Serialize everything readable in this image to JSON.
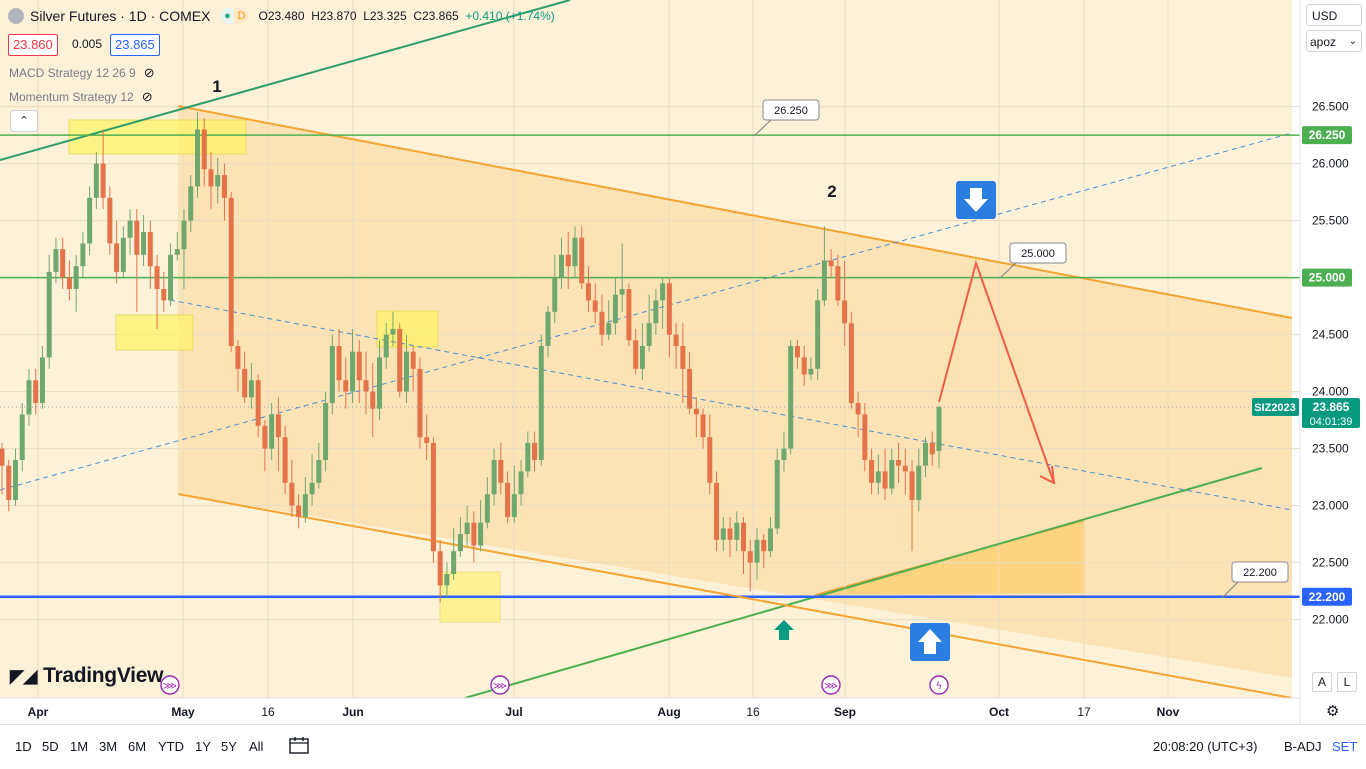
{
  "header": {
    "title": "Silver Futures · 1D · COMEX",
    "badges": [
      "●",
      "D"
    ],
    "ohlc": {
      "o": "O23.480",
      "h": "H23.870",
      "l": "L23.325",
      "c": "C23.865",
      "change": "+0.410 (+1.74%)"
    }
  },
  "prices": {
    "bid": "23.860",
    "spread": "0.005",
    "ask": "23.865"
  },
  "indicators": [
    {
      "label": "MACD Strategy 12 26 9",
      "icon": "eye-crossed-icon"
    },
    {
      "label": "Momentum Strategy 12",
      "icon": "eye-crossed-icon"
    }
  ],
  "controls": {
    "currency": "USD",
    "scale_mode": "apoz",
    "collapse_glyph": "⌃",
    "auto_btn": "A",
    "log_btn": "L"
  },
  "logo": "TradingView",
  "toolbar": {
    "timeframes": [
      "1D",
      "5D",
      "1M",
      "3M",
      "6M",
      "YTD",
      "1Y",
      "5Y",
      "All"
    ],
    "clock": "20:08:20 (UTC+3)",
    "adjust": "B-ADJ",
    "settings": "SET"
  },
  "chart_data": {
    "type": "candlestick",
    "symbol": "SIZ2023",
    "last_price": "23.865",
    "countdown": "04:01:39",
    "y_axis": {
      "min": 21.65,
      "max": 26.95,
      "ticks": [
        "22.000",
        "22.500",
        "23.000",
        "23.500",
        "24.000",
        "24.500",
        "25.000",
        "25.500",
        "26.000",
        "26.500"
      ]
    },
    "x_axis": {
      "labels": [
        "Apr",
        "May",
        "16",
        "Jun",
        "Jul",
        "Aug",
        "16",
        "Sep",
        "Oct",
        "17",
        "Nov"
      ],
      "bold": [
        "Apr",
        "May",
        "Jun",
        "Jul",
        "Aug",
        "Sep",
        "Oct",
        "Nov"
      ]
    },
    "horizontal_levels": [
      {
        "price": 26.25,
        "label": "26.250",
        "color": "#4caf50"
      },
      {
        "price": 25.0,
        "label": "25.000",
        "color": "#4caf50"
      },
      {
        "price": 22.2,
        "label": "22.200",
        "color": "#2962ff"
      }
    ],
    "callouts": [
      "26.250",
      "25.000",
      "22.200"
    ],
    "wave_labels": [
      "1",
      "2"
    ],
    "axis_colors": {
      "up": "#089981",
      "down": "#f23645",
      "level_label_green": "#4caf50",
      "level_label_blue": "#2962ff"
    },
    "candles": [
      [
        23.5,
        23.35,
        23.55,
        23.1
      ],
      [
        23.35,
        23.05,
        23.4,
        22.95
      ],
      [
        23.05,
        23.4,
        23.5,
        23.0
      ],
      [
        23.4,
        23.8,
        23.9,
        23.3
      ],
      [
        23.8,
        24.1,
        24.2,
        23.7
      ],
      [
        24.1,
        23.9,
        24.2,
        23.8
      ],
      [
        23.9,
        24.3,
        24.4,
        23.85
      ],
      [
        24.3,
        25.05,
        25.2,
        24.2
      ],
      [
        25.05,
        25.25,
        25.35,
        24.95
      ],
      [
        25.25,
        25.0,
        25.35,
        24.9
      ],
      [
        25.0,
        24.9,
        25.15,
        24.8
      ],
      [
        24.9,
        25.1,
        25.2,
        24.7
      ],
      [
        25.1,
        25.3,
        25.4,
        25.0
      ],
      [
        25.3,
        25.7,
        25.8,
        25.2
      ],
      [
        25.7,
        26.0,
        26.1,
        25.6
      ],
      [
        26.0,
        25.7,
        26.3,
        25.6
      ],
      [
        25.7,
        25.3,
        25.8,
        25.2
      ],
      [
        25.3,
        25.05,
        25.5,
        24.95
      ],
      [
        25.05,
        25.35,
        25.45,
        25.0
      ],
      [
        25.35,
        25.5,
        25.6,
        25.2
      ],
      [
        25.5,
        25.2,
        25.6,
        24.7
      ],
      [
        25.2,
        25.4,
        25.55,
        25.1
      ],
      [
        25.4,
        25.1,
        25.5,
        24.9
      ],
      [
        25.1,
        24.9,
        25.2,
        24.55
      ],
      [
        24.9,
        24.8,
        25.05,
        24.7
      ],
      [
        24.8,
        25.2,
        25.3,
        24.75
      ],
      [
        25.2,
        25.25,
        25.4,
        25.15
      ],
      [
        25.25,
        25.5,
        25.6,
        24.9
      ],
      [
        25.5,
        25.8,
        25.9,
        25.4
      ],
      [
        25.8,
        26.3,
        26.45,
        25.7
      ],
      [
        26.3,
        25.95,
        26.4,
        25.8
      ],
      [
        25.95,
        25.8,
        26.1,
        25.6
      ],
      [
        25.8,
        25.9,
        26.05,
        25.65
      ],
      [
        25.9,
        25.7,
        26.0,
        25.5
      ],
      [
        25.7,
        24.4,
        25.75,
        24.35
      ],
      [
        24.4,
        24.2,
        24.45,
        24.0
      ],
      [
        24.2,
        23.95,
        24.35,
        23.9
      ],
      [
        23.95,
        24.1,
        24.25,
        23.85
      ],
      [
        24.1,
        23.7,
        24.15,
        23.6
      ],
      [
        23.7,
        23.5,
        23.75,
        23.3
      ],
      [
        23.5,
        23.8,
        23.9,
        23.4
      ],
      [
        23.8,
        23.6,
        23.95,
        23.3
      ],
      [
        23.6,
        23.2,
        23.7,
        23.1
      ],
      [
        23.2,
        23.0,
        23.4,
        22.9
      ],
      [
        23.0,
        22.9,
        23.1,
        22.8
      ],
      [
        22.9,
        23.1,
        23.25,
        22.85
      ],
      [
        23.1,
        23.2,
        23.45,
        23.0
      ],
      [
        23.2,
        23.4,
        23.55,
        23.15
      ],
      [
        23.4,
        23.9,
        24.0,
        23.3
      ],
      [
        23.9,
        24.4,
        24.5,
        23.8
      ],
      [
        24.4,
        24.1,
        24.55,
        24.0
      ],
      [
        24.1,
        24.0,
        24.3,
        23.85
      ],
      [
        24.0,
        24.35,
        24.55,
        23.9
      ],
      [
        24.35,
        24.1,
        24.45,
        23.9
      ],
      [
        24.1,
        24.0,
        24.35,
        23.8
      ],
      [
        24.0,
        23.85,
        24.25,
        23.6
      ],
      [
        23.85,
        24.3,
        24.45,
        23.75
      ],
      [
        24.3,
        24.5,
        24.6,
        24.2
      ],
      [
        24.5,
        24.55,
        24.7,
        24.4
      ],
      [
        24.55,
        24.0,
        24.6,
        23.95
      ],
      [
        24.0,
        24.35,
        24.5,
        23.9
      ],
      [
        24.35,
        24.2,
        24.4,
        24.0
      ],
      [
        24.2,
        23.6,
        24.3,
        23.5
      ],
      [
        23.6,
        23.55,
        23.8,
        23.4
      ],
      [
        23.55,
        22.6,
        23.6,
        22.5
      ],
      [
        22.6,
        22.3,
        22.7,
        22.15
      ],
      [
        22.3,
        22.4,
        22.5,
        22.2
      ],
      [
        22.4,
        22.6,
        22.8,
        22.35
      ],
      [
        22.6,
        22.75,
        22.9,
        22.55
      ],
      [
        22.75,
        22.85,
        23.0,
        22.65
      ],
      [
        22.85,
        22.65,
        22.95,
        22.5
      ],
      [
        22.65,
        22.85,
        23.05,
        22.6
      ],
      [
        22.85,
        23.1,
        23.25,
        22.8
      ],
      [
        23.1,
        23.4,
        23.5,
        23.0
      ],
      [
        23.4,
        23.2,
        23.55,
        23.1
      ],
      [
        23.2,
        22.9,
        23.3,
        22.85
      ],
      [
        22.9,
        23.1,
        23.35,
        22.85
      ],
      [
        23.1,
        23.3,
        23.4,
        23.0
      ],
      [
        23.3,
        23.55,
        23.65,
        23.25
      ],
      [
        23.55,
        23.4,
        23.65,
        23.3
      ],
      [
        23.4,
        24.4,
        24.5,
        23.35
      ],
      [
        24.4,
        24.7,
        24.75,
        24.3
      ],
      [
        24.7,
        25.0,
        25.2,
        24.6
      ],
      [
        25.0,
        25.2,
        25.35,
        24.9
      ],
      [
        25.2,
        25.1,
        25.4,
        24.9
      ],
      [
        25.1,
        25.35,
        25.45,
        25.0
      ],
      [
        25.35,
        24.95,
        25.45,
        24.9
      ],
      [
        24.95,
        24.8,
        25.1,
        24.7
      ],
      [
        24.8,
        24.7,
        24.95,
        24.6
      ],
      [
        24.7,
        24.5,
        24.85,
        24.4
      ],
      [
        24.5,
        24.6,
        24.8,
        24.45
      ],
      [
        24.6,
        24.85,
        25.0,
        24.5
      ],
      [
        24.85,
        24.9,
        25.3,
        24.7
      ],
      [
        24.9,
        24.45,
        24.95,
        24.4
      ],
      [
        24.45,
        24.2,
        24.55,
        24.15
      ],
      [
        24.2,
        24.4,
        24.6,
        24.1
      ],
      [
        24.4,
        24.6,
        24.85,
        24.35
      ],
      [
        24.6,
        24.8,
        24.9,
        24.5
      ],
      [
        24.8,
        24.95,
        25.0,
        24.55
      ],
      [
        24.95,
        24.5,
        25.0,
        24.3
      ],
      [
        24.5,
        24.4,
        24.6,
        24.2
      ],
      [
        24.4,
        24.2,
        24.6,
        23.9
      ],
      [
        24.2,
        23.85,
        24.35,
        23.8
      ],
      [
        23.85,
        23.8,
        23.95,
        23.6
      ],
      [
        23.8,
        23.6,
        23.85,
        23.5
      ],
      [
        23.6,
        23.2,
        23.8,
        23.1
      ],
      [
        23.2,
        22.7,
        23.3,
        22.6
      ],
      [
        22.7,
        22.8,
        22.9,
        22.6
      ],
      [
        22.8,
        22.7,
        22.9,
        22.55
      ],
      [
        22.7,
        22.85,
        22.95,
        22.6
      ],
      [
        22.85,
        22.6,
        22.9,
        22.4
      ],
      [
        22.6,
        22.5,
        22.7,
        22.25
      ],
      [
        22.5,
        22.7,
        22.8,
        22.35
      ],
      [
        22.7,
        22.6,
        22.75,
        22.45
      ],
      [
        22.6,
        22.8,
        22.9,
        22.55
      ],
      [
        22.8,
        23.4,
        23.5,
        22.75
      ],
      [
        23.4,
        23.5,
        23.65,
        23.3
      ],
      [
        23.5,
        24.4,
        24.45,
        23.45
      ],
      [
        24.4,
        24.3,
        24.45,
        24.2
      ],
      [
        24.3,
        24.15,
        24.4,
        24.05
      ],
      [
        24.15,
        24.2,
        24.3,
        24.1
      ],
      [
        24.2,
        24.8,
        24.9,
        24.1
      ],
      [
        24.8,
        25.15,
        25.45,
        24.75
      ],
      [
        25.15,
        25.1,
        25.25,
        25.0
      ],
      [
        25.1,
        24.8,
        25.2,
        24.75
      ],
      [
        24.8,
        24.6,
        25.15,
        24.4
      ],
      [
        24.6,
        23.9,
        24.7,
        23.85
      ],
      [
        23.9,
        23.8,
        24.0,
        23.6
      ],
      [
        23.8,
        23.4,
        23.9,
        23.3
      ],
      [
        23.4,
        23.2,
        23.5,
        23.1
      ],
      [
        23.2,
        23.3,
        23.45,
        23.1
      ],
      [
        23.3,
        23.15,
        23.5,
        23.05
      ],
      [
        23.15,
        23.4,
        23.5,
        23.1
      ],
      [
        23.4,
        23.35,
        23.55,
        23.2
      ],
      [
        23.35,
        23.3,
        23.5,
        23.1
      ],
      [
        23.3,
        23.05,
        23.4,
        22.6
      ],
      [
        23.05,
        23.35,
        23.5,
        22.95
      ],
      [
        23.35,
        23.55,
        23.6,
        23.25
      ],
      [
        23.55,
        23.45,
        23.65,
        23.35
      ],
      [
        23.48,
        23.865,
        23.87,
        23.325
      ]
    ]
  }
}
